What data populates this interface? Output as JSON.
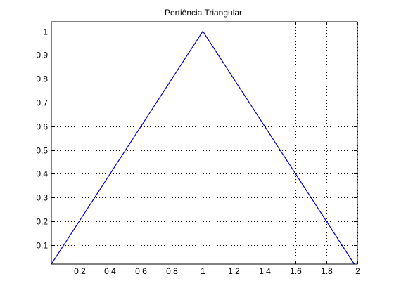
{
  "chart_data": {
    "type": "line",
    "title": "Pertiência Triangular",
    "xlabel": "",
    "ylabel": "",
    "xlim": [
      0.02,
      2
    ],
    "ylim": [
      0.02,
      1.04
    ],
    "grid": true,
    "x_ticks": [
      0.2,
      0.4,
      0.6,
      0.8,
      1,
      1.2,
      1.4,
      1.6,
      1.8,
      2
    ],
    "x_tick_labels": [
      "0.2",
      "0.4",
      "0.6",
      "0.8",
      "1",
      "1.2",
      "1.4",
      "1.6",
      "1.8",
      "2"
    ],
    "y_ticks": [
      0.1,
      0.2,
      0.3,
      0.4,
      0.5,
      0.6,
      0.7,
      0.8,
      0.9,
      1
    ],
    "y_tick_labels": [
      "0.1",
      "0.2",
      "0.3",
      "0.4",
      "0.5",
      "0.6",
      "0.7",
      "0.8",
      "0.9",
      "1"
    ],
    "series": [
      {
        "x": [
          0.02,
          1,
          1.98
        ],
        "y": [
          0.02,
          1,
          0.02
        ],
        "color": "#0000cc"
      }
    ]
  },
  "colors": {
    "axes": "#000000",
    "grid": "#000000",
    "background": "#ffffff"
  }
}
